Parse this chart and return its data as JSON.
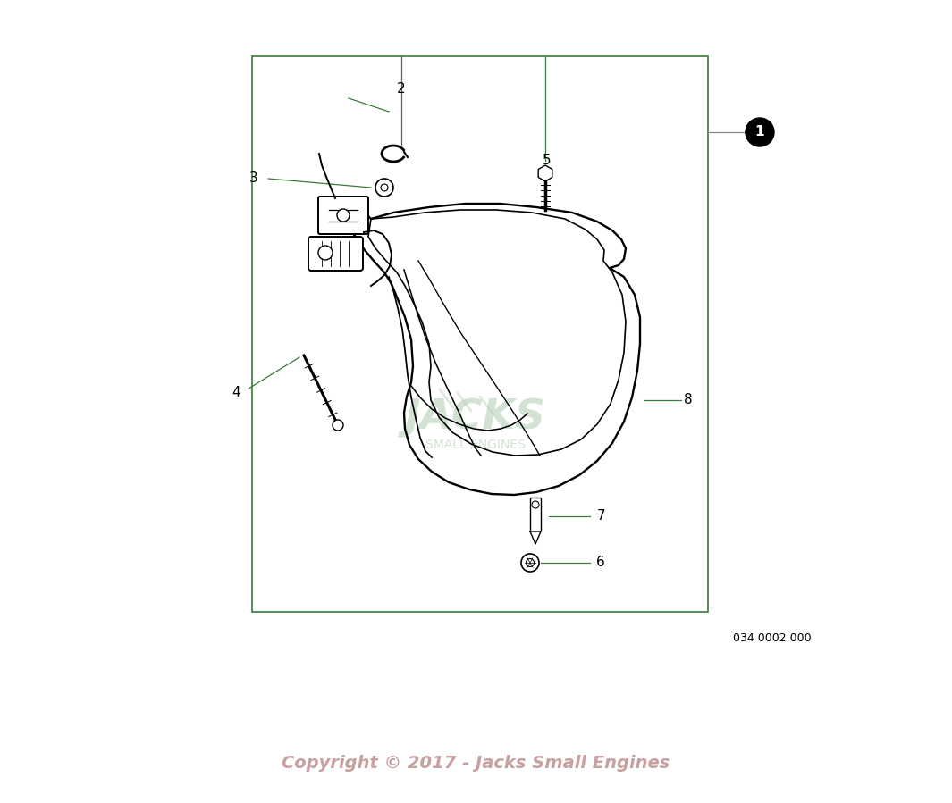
{
  "bg_color": "#ffffff",
  "border_color": "#3a7a3a",
  "line_color": "#000000",
  "label_color": "#000000",
  "copyright_color": "#c8a0a0",
  "watermark_color": "#b0ccb0",
  "diagram_number": "034 0002 000",
  "copyright_text": "Copyright © 2017 - Jacks Small Engines"
}
